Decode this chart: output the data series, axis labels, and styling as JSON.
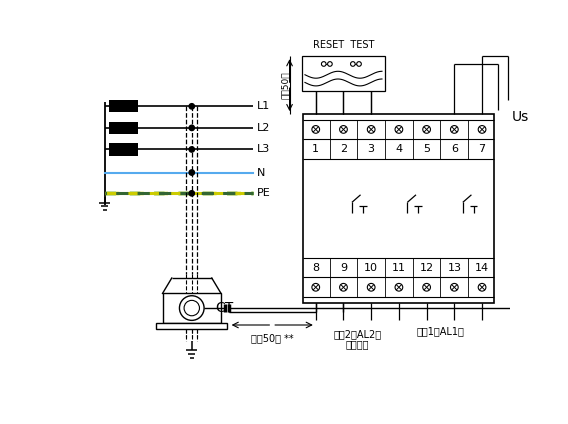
{
  "bg": "#ffffff",
  "lc": "#000000",
  "N_color": "#55aaee",
  "PE_color_y": "#dddd00",
  "PE_color_g": "#44aa44",
  "top_terminals": [
    "1",
    "2",
    "3",
    "4",
    "5",
    "6",
    "7"
  ],
  "bot_terminals": [
    "8",
    "9",
    "10",
    "11",
    "12",
    "13",
    "14"
  ],
  "reset_test": "RESET  TEST",
  "Us": "Us",
  "max50_v": "最长50米",
  "max50_h": "最长50米 **",
  "ct": "CT",
  "alarm1": "报警1（AL1）",
  "alarm2_l1": "报警2（AL2）",
  "alarm2_l2": "或预报警"
}
